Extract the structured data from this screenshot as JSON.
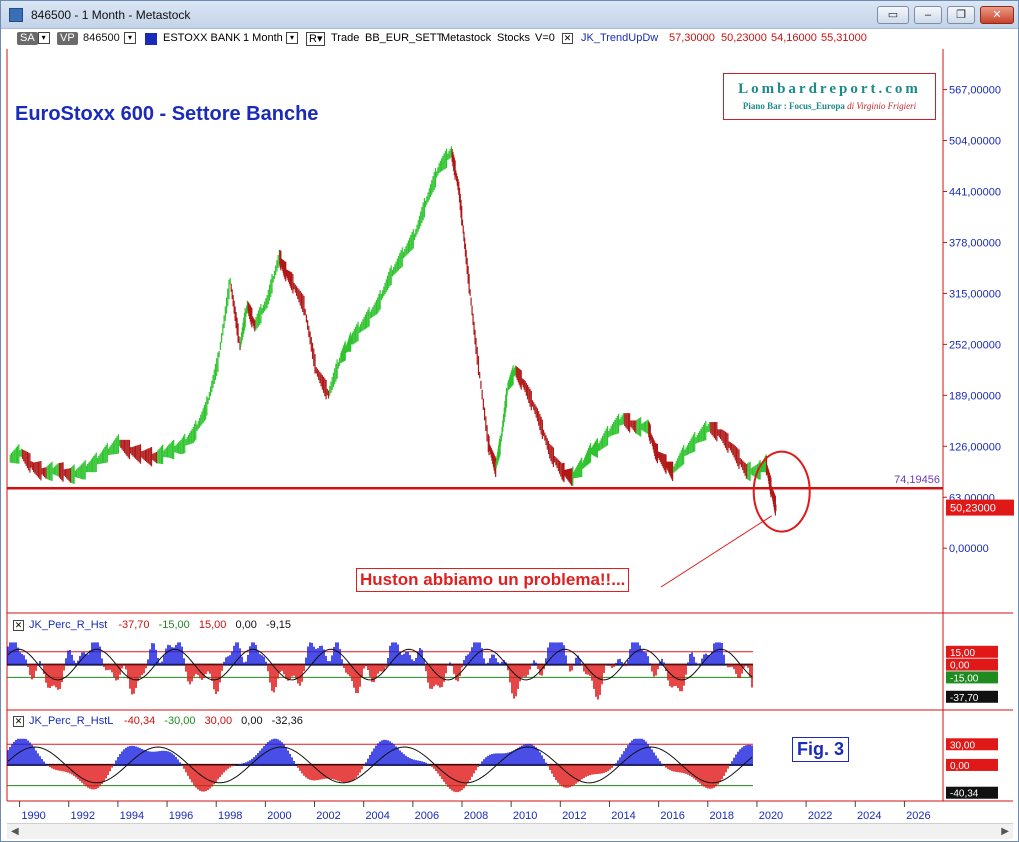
{
  "window": {
    "title": "846500 - 1 Month - Metastock",
    "buttons": [
      "▭",
      "–",
      "❐",
      "✕"
    ]
  },
  "toolbar": {
    "sa": "SA",
    "vp": "VP",
    "symbol": "846500",
    "security": "ESTOXX BANK",
    "period": "1 Month",
    "r_label": "R",
    "trade": "Trade",
    "template": "BB_EUR_SETT",
    "source": "Metastock",
    "stocks": "Stocks",
    "volume": "V=0",
    "x": "✕",
    "indicator": "JK_TrendUpDw",
    "values": [
      "57,30000",
      "50,23000",
      "54,16000",
      "55,31000"
    ]
  },
  "branding": {
    "name": "Lombardreport.com",
    "sub_bold": "Piano Bar : Focus_Europa",
    "sub_italic": "di Virginio Frigieri"
  },
  "annotations": {
    "title": "EuroStoxx 600 - Settore Banche",
    "callout": "Huston abbiamo un problema!!...",
    "fig": "Fig.  3"
  },
  "panels": {
    "p1": {
      "name": "JK_Perc_R_Hst",
      "values": [
        "-37,70",
        "-15,00",
        "15,00",
        "0,00",
        "-9,15"
      ]
    },
    "p2": {
      "name": "JK_Perc_R_HstL",
      "values": [
        "-40,34",
        "-30,00",
        "30,00",
        "0,00",
        "-32,36"
      ]
    }
  },
  "chart_data": [
    {
      "type": "line",
      "title": "EuroStoxx 600 - Settore Banche",
      "x_range": [
        1989,
        2027
      ],
      "x_ticks": [
        "1990",
        "1992",
        "1994",
        "1996",
        "1998",
        "2000",
        "2002",
        "2004",
        "2006",
        "2008",
        "2010",
        "2012",
        "2014",
        "2016",
        "2018",
        "2020",
        "2022",
        "2024",
        "2026"
      ],
      "ylim": [
        -22,
        590
      ],
      "y_ticks": [
        "0,00000",
        "63,00000",
        "126,00000",
        "189,00000",
        "252,00000",
        "315,00000",
        "378,00000",
        "441,00000",
        "504,00000",
        "567,00000"
      ],
      "hline": {
        "value": 74.19456,
        "label": "74,19456",
        "color": "#d01010"
      },
      "last": {
        "value": 50.23,
        "label": "50,23000"
      },
      "series": [
        {
          "x": [
            1989.0,
            1989.5,
            1990.0,
            1990.5,
            1991.0,
            1991.5,
            1992.0,
            1992.5,
            1993.0,
            1993.5,
            1994.0,
            1994.5,
            1995.0,
            1995.5,
            1996.0,
            1996.5,
            1997.0,
            1997.5,
            1998.0,
            1998.4,
            1998.7,
            1999.0,
            1999.5,
            2000.0,
            2000.2,
            2000.5,
            2001.0,
            2001.5,
            2002.0,
            2002.5,
            2002.8,
            2003.0,
            2003.5,
            2004.0,
            2004.5,
            2005.0,
            2005.5,
            2006.0,
            2006.5,
            2007.0,
            2007.3,
            2007.6,
            2008.0,
            2008.5,
            2008.8,
            2009.0,
            2009.3,
            2009.6,
            2010.0,
            2010.5,
            2011.0,
            2011.5,
            2011.9,
            2012.3,
            2012.7,
            2013.0,
            2013.5,
            2014.0,
            2014.5,
            2015.0,
            2015.3,
            2015.7,
            2016.0,
            2016.5,
            2017.0,
            2017.5,
            2018.0,
            2018.5,
            2019.0,
            2019.5,
            2019.8,
            2020.0,
            2020.2
          ],
          "y": [
            110,
            118,
            100,
            93,
            97,
            90,
            95,
            105,
            118,
            130,
            120,
            115,
            112,
            120,
            125,
            140,
            170,
            230,
            330,
            250,
            300,
            275,
            305,
            360,
            345,
            330,
            300,
            220,
            190,
            235,
            250,
            260,
            280,
            300,
            335,
            360,
            385,
            430,
            470,
            490,
            445,
            360,
            250,
            130,
            100,
            130,
            200,
            220,
            200,
            165,
            120,
            95,
            88,
            100,
            120,
            125,
            145,
            160,
            150,
            150,
            120,
            105,
            95,
            118,
            135,
            150,
            140,
            120,
            95,
            95,
            105,
            75,
            50
          ]
        }
      ]
    },
    {
      "type": "bar",
      "name": "JK_Perc_R_Hst",
      "ylim": [
        -45,
        30
      ],
      "ref_lines": [
        15,
        0,
        -15
      ],
      "labels": [
        "15,00",
        "0,00",
        "-15,00",
        "-37,70"
      ]
    },
    {
      "type": "area",
      "name": "JK_Perc_R_HstL",
      "ylim": [
        -48,
        42
      ],
      "ref_lines": [
        30,
        0,
        -30
      ],
      "labels": [
        "30,00",
        "0,00",
        "-40,34"
      ]
    }
  ]
}
